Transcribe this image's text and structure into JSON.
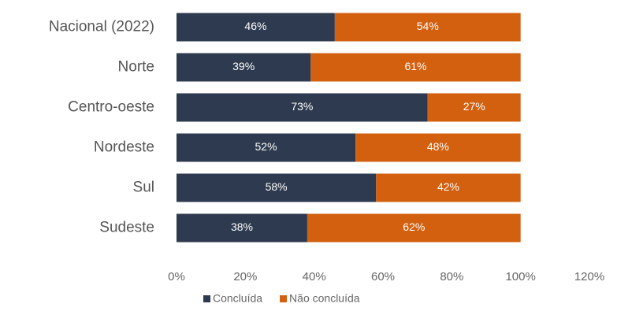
{
  "chart_data": {
    "type": "stacked_barh",
    "categories": [
      "Nacional (2022)",
      "Norte",
      "Centro-oeste",
      "Nordeste",
      "Sul",
      "Sudeste"
    ],
    "series": [
      {
        "name": "Concluída",
        "color": "#2e3a4f",
        "values": [
          46,
          39,
          73,
          52,
          58,
          38
        ],
        "value_labels": [
          "46%",
          "39%",
          "73%",
          "52%",
          "58%",
          "38%"
        ]
      },
      {
        "name": "Não concluída",
        "color": "#d2600f",
        "values": [
          54,
          61,
          27,
          48,
          42,
          62
        ],
        "value_labels": [
          "54%",
          "61%",
          "27%",
          "48%",
          "42%",
          "62%"
        ]
      }
    ],
    "xlim": [
      0,
      120
    ],
    "xticks": [
      {
        "value": 0,
        "label": "0%"
      },
      {
        "value": 20,
        "label": "20%"
      },
      {
        "value": 40,
        "label": "40%"
      },
      {
        "value": 60,
        "label": "60%"
      },
      {
        "value": 80,
        "label": "80%"
      },
      {
        "value": 100,
        "label": "100%"
      },
      {
        "value": 120,
        "label": "120%"
      }
    ],
    "legend": "bottom"
  }
}
